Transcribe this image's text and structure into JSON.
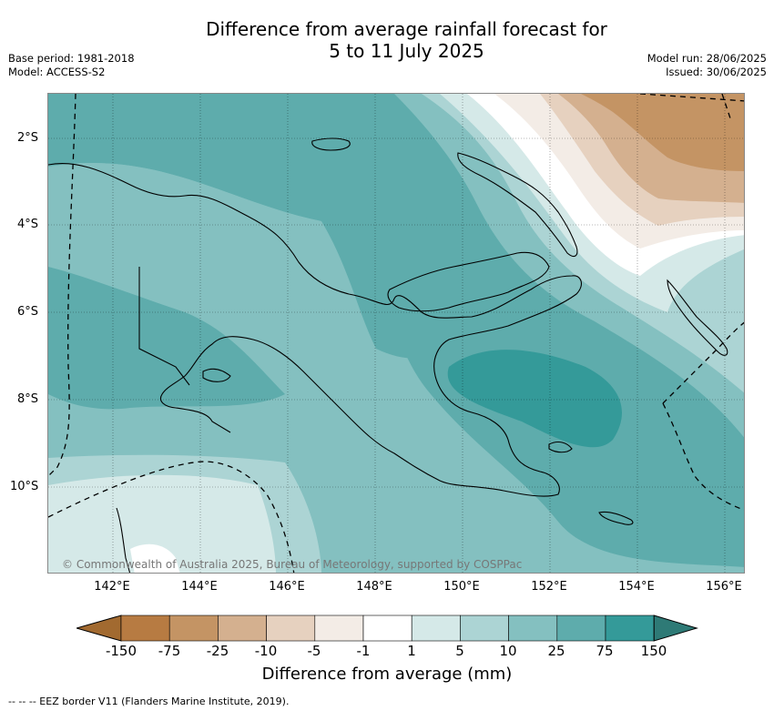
{
  "title": {
    "line1": "Difference from average rainfall forecast for",
    "line2": "5 to 11 July 2025"
  },
  "meta": {
    "base_period": "Base period: 1981-2018",
    "model": "Model: ACCESS-S2",
    "model_run": "Model run: 28/06/2025",
    "issued": "Issued: 30/06/2025"
  },
  "map": {
    "credit": "© Commonwealth of Australia 2025, Bureau of Meteorology, supported by COSPPac",
    "lat_labels": [
      "2°S",
      "4°S",
      "6°S",
      "8°S",
      "10°S"
    ],
    "lon_labels": [
      "142°E",
      "144°E",
      "146°E",
      "148°E",
      "150°E",
      "152°E",
      "154°E",
      "156°E"
    ]
  },
  "colorbar": {
    "ticks": [
      "-150",
      "-75",
      "-25",
      "-10",
      "-5",
      "-1",
      "1",
      "5",
      "10",
      "25",
      "75",
      "150"
    ],
    "colors": [
      "#a26a30",
      "#b77b42",
      "#c49464",
      "#d4b08f",
      "#e6d1bf",
      "#f3ece6",
      "#ffffff",
      "#d5e9e8",
      "#acd4d4",
      "#84c0c0",
      "#5eacac",
      "#349a99",
      "#2e7a76"
    ],
    "label": "Difference from average (mm)"
  },
  "legend": {
    "eez_text": "--  --  -- EEZ border V11 (Flanders Marine Institute, 2019)."
  }
}
